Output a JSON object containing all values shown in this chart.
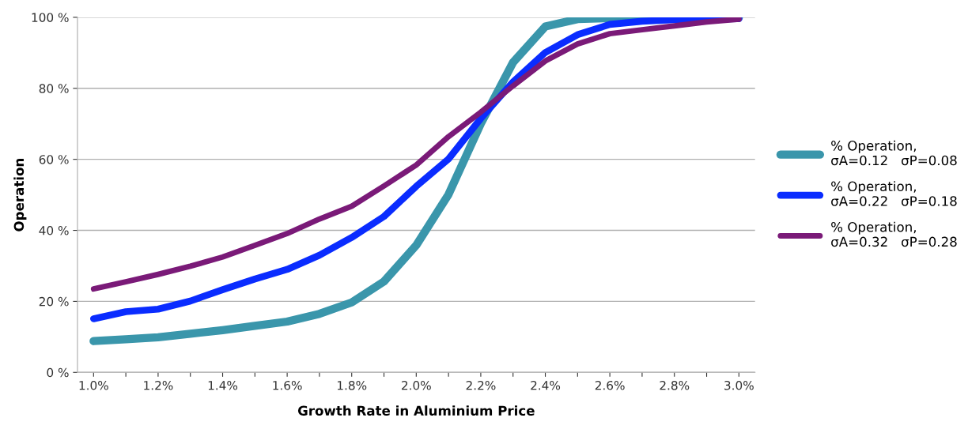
{
  "chart_data": {
    "type": "line",
    "xlabel": "Growth Rate in Aluminium Price",
    "ylabel": "Operation",
    "categories": [
      "1.0%",
      null,
      "1.2%",
      null,
      "1.4%",
      null,
      "1.6%",
      null,
      "1.8%",
      null,
      "2.0%",
      null,
      "2.2%",
      null,
      "2.4%",
      null,
      "2.6%",
      null,
      "2.8%",
      null,
      "3.0%"
    ],
    "series": [
      {
        "name": "% Operation,\nσA=0.12   σP=0.08",
        "color": "#3a96ab",
        "values": [
          8.8,
          9.3,
          9.9,
          10.9,
          11.9,
          13.1,
          14.3,
          16.5,
          19.7,
          25.6,
          35.8,
          50.1,
          70.0,
          87.3,
          97.4,
          99.5,
          99.8,
          100,
          100,
          100,
          100
        ]
      },
      {
        "name": "% Operation,\nσA=0.22   σP=0.18",
        "color": "#0a2cff",
        "values": [
          15.1,
          17.1,
          17.8,
          20.1,
          23.3,
          26.3,
          29.0,
          33.0,
          38.0,
          43.9,
          52.4,
          60.1,
          71.5,
          81.8,
          90.1,
          95.1,
          98.0,
          98.9,
          99.3,
          99.5,
          99.6
        ]
      },
      {
        "name": "% Operation,\nσA=0.32   σP=0.28",
        "color": "#7a1a78",
        "values": [
          23.5,
          25.5,
          27.6,
          29.9,
          32.5,
          35.8,
          39.1,
          43.2,
          46.8,
          52.5,
          58.4,
          66.4,
          73.3,
          80.7,
          87.7,
          92.5,
          95.4,
          96.5,
          97.6,
          98.7,
          99.5
        ]
      }
    ],
    "ylim": [
      0,
      100
    ],
    "yticks": [
      {
        "value": 0,
        "label": "0 %"
      },
      {
        "value": 20,
        "label": "20 %"
      },
      {
        "value": 40,
        "label": "40 %"
      },
      {
        "value": 60,
        "label": "60 %"
      },
      {
        "value": 80,
        "label": "80 %"
      },
      {
        "value": 100,
        "label": "100 %"
      }
    ],
    "grid": "y",
    "legend": "right",
    "marker": "none",
    "line_style": "solid"
  }
}
